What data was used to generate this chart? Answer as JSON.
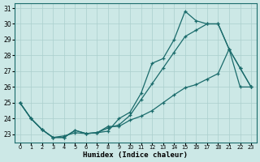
{
  "xlabel": "Humidex (Indice chaleur)",
  "bg_color": "#cce8e6",
  "line_color": "#1a6b6b",
  "grid_color": "#aacfcd",
  "line1_x": [
    0,
    1,
    2,
    3,
    4,
    5,
    6,
    7,
    8,
    9,
    10,
    11,
    12,
    13,
    14,
    15,
    16,
    17,
    18,
    21,
    22,
    23
  ],
  "line1_y": [
    25.0,
    24.0,
    23.3,
    22.8,
    22.8,
    23.25,
    23.05,
    23.1,
    23.2,
    24.0,
    24.4,
    25.6,
    27.5,
    27.8,
    29.0,
    30.8,
    30.2,
    30.0,
    30.0,
    28.4,
    27.2,
    26.0
  ],
  "line2_x": [
    0,
    1,
    2,
    3,
    4,
    5,
    6,
    7,
    8,
    9,
    10,
    11,
    12,
    13,
    14,
    15,
    16,
    17,
    18,
    21,
    22,
    23
  ],
  "line2_y": [
    25.0,
    24.0,
    23.3,
    22.8,
    22.8,
    23.25,
    23.05,
    23.1,
    23.4,
    23.6,
    24.2,
    25.2,
    26.2,
    27.2,
    28.2,
    29.2,
    29.6,
    30.0,
    30.0,
    28.4,
    27.2,
    26.0
  ],
  "line3_x": [
    0,
    1,
    2,
    3,
    4,
    5,
    6,
    7,
    8,
    9,
    10,
    11,
    12,
    13,
    14,
    15,
    16,
    17,
    18,
    21,
    22,
    23
  ],
  "line3_y": [
    25.0,
    24.0,
    23.3,
    22.8,
    22.9,
    23.1,
    23.05,
    23.1,
    23.5,
    23.5,
    23.9,
    24.15,
    24.5,
    25.0,
    25.5,
    25.95,
    26.15,
    26.5,
    26.85,
    28.4,
    26.0,
    26.0
  ],
  "pos_ticks": [
    0,
    1,
    2,
    3,
    4,
    5,
    6,
    7,
    8,
    9,
    10,
    11,
    12,
    13,
    14,
    15,
    16,
    17,
    18,
    21,
    22,
    23
  ],
  "xlim": [
    -0.5,
    23.5
  ],
  "ylim": [
    22.5,
    31.3
  ],
  "yticks": [
    23,
    24,
    25,
    26,
    27,
    28,
    29,
    30,
    31
  ]
}
